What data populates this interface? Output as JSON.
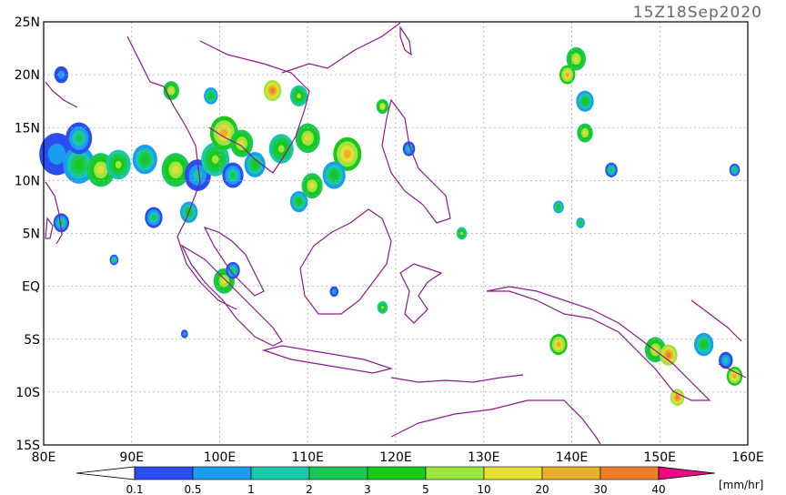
{
  "map": {
    "timestamp": "15Z18Sep2020",
    "lat_labels": [
      "25N",
      "20N",
      "15N",
      "10N",
      "5N",
      "EQ",
      "5S",
      "10S",
      "15S"
    ],
    "lon_labels": [
      "80E",
      "90E",
      "100E",
      "110E",
      "120E",
      "130E",
      "140E",
      "150E",
      "160E"
    ],
    "extent": {
      "lon": [
        80,
        160
      ],
      "lat": [
        -15,
        25
      ]
    },
    "grid": true
  },
  "legend": {
    "unit": "[mm/hr]",
    "tick_labels": [
      "0.1",
      "0.5",
      "1",
      "2",
      "3",
      "5",
      "10",
      "20",
      "30",
      "40"
    ],
    "colors": [
      "#2b4cf0",
      "#1a9cf0",
      "#19c8a8",
      "#19c850",
      "#19c819",
      "#9be641",
      "#e6dc32",
      "#e6af2d",
      "#f07d2d",
      "#f03c3c",
      "#eb0a82"
    ],
    "underflow_color": "#ffffff"
  },
  "precip_cells": [
    {
      "lon": 81.5,
      "lat": 12.5,
      "r": 2.0,
      "level": 1
    },
    {
      "lon": 84.0,
      "lat": 11.5,
      "r": 1.8,
      "level": 4
    },
    {
      "lon": 86.5,
      "lat": 11.0,
      "r": 1.6,
      "level": 6
    },
    {
      "lon": 84.0,
      "lat": 14.0,
      "r": 1.5,
      "level": 3
    },
    {
      "lon": 88.5,
      "lat": 11.5,
      "r": 1.4,
      "level": 5
    },
    {
      "lon": 91.5,
      "lat": 12.0,
      "r": 1.4,
      "level": 4
    },
    {
      "lon": 95.0,
      "lat": 11.0,
      "r": 1.6,
      "level": 6
    },
    {
      "lon": 97.5,
      "lat": 10.5,
      "r": 1.5,
      "level": 2
    },
    {
      "lon": 99.5,
      "lat": 12.0,
      "r": 1.6,
      "level": 5
    },
    {
      "lon": 100.5,
      "lat": 14.5,
      "r": 1.6,
      "level": 7
    },
    {
      "lon": 102.5,
      "lat": 13.5,
      "r": 1.3,
      "level": 6
    },
    {
      "lon": 101.5,
      "lat": 10.5,
      "r": 1.2,
      "level": 3
    },
    {
      "lon": 104.0,
      "lat": 11.5,
      "r": 1.2,
      "level": 4
    },
    {
      "lon": 107.0,
      "lat": 13.0,
      "r": 1.4,
      "level": 5
    },
    {
      "lon": 110.0,
      "lat": 14.0,
      "r": 1.4,
      "level": 6
    },
    {
      "lon": 114.5,
      "lat": 12.5,
      "r": 1.6,
      "level": 7
    },
    {
      "lon": 113.0,
      "lat": 10.5,
      "r": 1.3,
      "level": 4
    },
    {
      "lon": 110.5,
      "lat": 9.5,
      "r": 1.2,
      "level": 6
    },
    {
      "lon": 109.0,
      "lat": 8.0,
      "r": 1.0,
      "level": 4
    },
    {
      "lon": 106.0,
      "lat": 18.5,
      "r": 1.0,
      "level": 8
    },
    {
      "lon": 109.0,
      "lat": 18.0,
      "r": 1.0,
      "level": 5
    },
    {
      "lon": 94.5,
      "lat": 18.5,
      "r": 0.9,
      "level": 6
    },
    {
      "lon": 96.5,
      "lat": 7.0,
      "r": 1.0,
      "level": 4
    },
    {
      "lon": 92.5,
      "lat": 6.5,
      "r": 1.0,
      "level": 3
    },
    {
      "lon": 100.5,
      "lat": 0.5,
      "r": 1.2,
      "level": 6
    },
    {
      "lon": 101.5,
      "lat": 1.5,
      "r": 0.8,
      "level": 3
    },
    {
      "lon": 82.0,
      "lat": 6.0,
      "r": 0.9,
      "level": 3
    },
    {
      "lon": 82.0,
      "lat": 20.0,
      "r": 0.8,
      "level": 1
    },
    {
      "lon": 99.0,
      "lat": 18.0,
      "r": 0.8,
      "level": 4
    },
    {
      "lon": 118.5,
      "lat": 17.0,
      "r": 0.7,
      "level": 6
    },
    {
      "lon": 140.5,
      "lat": 21.5,
      "r": 1.1,
      "level": 6
    },
    {
      "lon": 141.5,
      "lat": 17.5,
      "r": 1.0,
      "level": 4
    },
    {
      "lon": 141.5,
      "lat": 14.5,
      "r": 0.9,
      "level": 6
    },
    {
      "lon": 139.5,
      "lat": 20.0,
      "r": 0.9,
      "level": 7
    },
    {
      "lon": 138.5,
      "lat": -5.5,
      "r": 1.0,
      "level": 7
    },
    {
      "lon": 149.5,
      "lat": -6.0,
      "r": 1.2,
      "level": 6
    },
    {
      "lon": 151.0,
      "lat": -6.5,
      "r": 1.0,
      "level": 8
    },
    {
      "lon": 155.0,
      "lat": -5.5,
      "r": 1.1,
      "level": 4
    },
    {
      "lon": 157.5,
      "lat": -7.0,
      "r": 0.8,
      "level": 2
    },
    {
      "lon": 158.5,
      "lat": -8.5,
      "r": 0.9,
      "level": 7
    },
    {
      "lon": 152.0,
      "lat": -10.5,
      "r": 0.8,
      "level": 8
    },
    {
      "lon": 144.5,
      "lat": 11.0,
      "r": 0.7,
      "level": 3
    },
    {
      "lon": 127.5,
      "lat": 5.0,
      "r": 0.6,
      "level": 5
    },
    {
      "lon": 118.5,
      "lat": -2.0,
      "r": 0.6,
      "level": 5
    },
    {
      "lon": 121.5,
      "lat": 13.0,
      "r": 0.7,
      "level": 2
    },
    {
      "lon": 138.5,
      "lat": 7.5,
      "r": 0.6,
      "level": 4
    },
    {
      "lon": 141.0,
      "lat": 6.0,
      "r": 0.5,
      "level": 4
    },
    {
      "lon": 158.5,
      "lat": 11.0,
      "r": 0.6,
      "level": 3
    },
    {
      "lon": 113.0,
      "lat": -0.5,
      "r": 0.5,
      "level": 1
    },
    {
      "lon": 88.0,
      "lat": 2.5,
      "r": 0.5,
      "level": 3
    },
    {
      "lon": 96.0,
      "lat": -4.5,
      "r": 0.4,
      "level": 1
    }
  ]
}
